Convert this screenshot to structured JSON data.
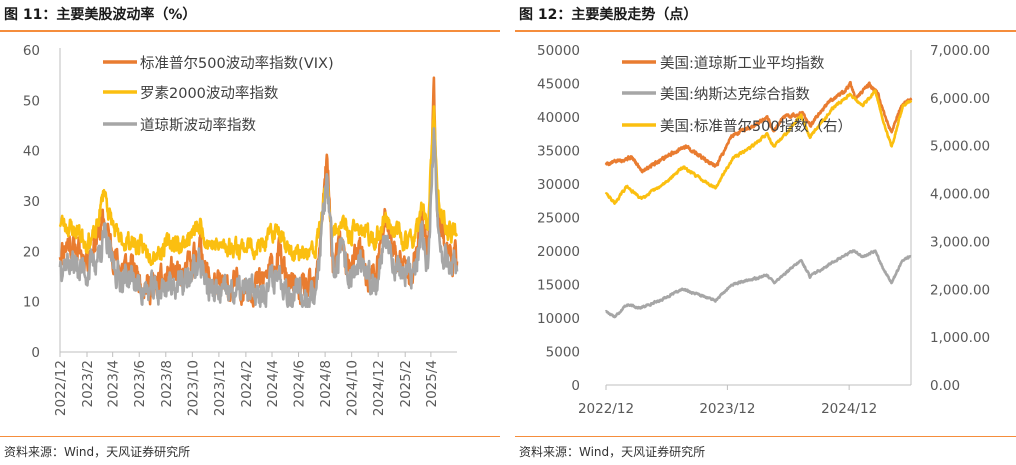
{
  "panels": {
    "left": {
      "title": "图 11：主要美股波动率（%）",
      "source": "资料来源：Wind，天风证券研究所"
    },
    "right": {
      "title": "图 12：主要美股走势（点）",
      "source": "资料来源：Wind，天风证券研究所"
    }
  },
  "chart_data": [
    {
      "type": "line",
      "title": "图 11：主要美股波动率（%）",
      "xlabel": "",
      "ylabel": "",
      "ylim": [
        0,
        60
      ],
      "y_ticks": [
        0,
        10,
        20,
        30,
        40,
        50,
        60
      ],
      "x_ticks": [
        "2022/12",
        "2023/2",
        "2023/4",
        "2023/6",
        "2023/8",
        "2023/10",
        "2023/12",
        "2024/2",
        "2024/4",
        "2024/6",
        "2024/8",
        "2024/10",
        "2024/12",
        "2025/2",
        "2025/4"
      ],
      "legend_position": "top-left",
      "x_range": [
        "2022-12-01",
        "2025-05-31"
      ],
      "series": [
        {
          "name": "标准普尔500波动率指数(VIX)",
          "color": "#e97c30",
          "points": [
            [
              "2022-12-01",
              20
            ],
            [
              "2022-12-20",
              22
            ],
            [
              "2023-01-10",
              20
            ],
            [
              "2023-02-01",
              19
            ],
            [
              "2023-02-20",
              22
            ],
            [
              "2023-03-13",
              26
            ],
            [
              "2023-03-25",
              22
            ],
            [
              "2023-04-15",
              17
            ],
            [
              "2023-05-10",
              17
            ],
            [
              "2023-06-01",
              15
            ],
            [
              "2023-06-20",
              13
            ],
            [
              "2023-07-15",
              13
            ],
            [
              "2023-08-15",
              16
            ],
            [
              "2023-09-05",
              14
            ],
            [
              "2023-09-25",
              17
            ],
            [
              "2023-10-20",
              21
            ],
            [
              "2023-11-05",
              15
            ],
            [
              "2023-11-25",
              13
            ],
            [
              "2023-12-15",
              12.5
            ],
            [
              "2024-01-10",
              13
            ],
            [
              "2024-02-10",
              13
            ],
            [
              "2024-03-10",
              14
            ],
            [
              "2024-04-19",
              19
            ],
            [
              "2024-05-10",
              13
            ],
            [
              "2024-06-10",
              12
            ],
            [
              "2024-07-10",
              12.5
            ],
            [
              "2024-08-05",
              38
            ],
            [
              "2024-08-20",
              16
            ],
            [
              "2024-09-06",
              22
            ],
            [
              "2024-09-25",
              16
            ],
            [
              "2024-10-20",
              20
            ],
            [
              "2024-11-06",
              15
            ],
            [
              "2024-11-25",
              15
            ],
            [
              "2024-12-18",
              27
            ],
            [
              "2025-01-10",
              19
            ],
            [
              "2025-02-05",
              16
            ],
            [
              "2025-02-25",
              18
            ],
            [
              "2025-03-10",
              27
            ],
            [
              "2025-03-25",
              19
            ],
            [
              "2025-04-08",
              52
            ],
            [
              "2025-04-15",
              31
            ],
            [
              "2025-04-25",
              25
            ],
            [
              "2025-05-10",
              20
            ],
            [
              "2025-05-31",
              18
            ]
          ]
        },
        {
          "name": "罗素2000波动率指数",
          "color": "#fbbf10",
          "points": [
            [
              "2022-12-01",
              26
            ],
            [
              "2022-12-20",
              25
            ],
            [
              "2023-01-10",
              24
            ],
            [
              "2023-02-01",
              22
            ],
            [
              "2023-02-20",
              23
            ],
            [
              "2023-03-13",
              32.5
            ],
            [
              "2023-03-25",
              27
            ],
            [
              "2023-04-15",
              22
            ],
            [
              "2023-05-10",
              22
            ],
            [
              "2023-06-01",
              21
            ],
            [
              "2023-06-20",
              20
            ],
            [
              "2023-07-15",
              20
            ],
            [
              "2023-08-15",
              22
            ],
            [
              "2023-09-05",
              21
            ],
            [
              "2023-09-25",
              23
            ],
            [
              "2023-10-20",
              25
            ],
            [
              "2023-11-05",
              22
            ],
            [
              "2023-11-25",
              21
            ],
            [
              "2023-12-15",
              21
            ],
            [
              "2024-01-10",
              21
            ],
            [
              "2024-02-10",
              21
            ],
            [
              "2024-03-10",
              21
            ],
            [
              "2024-04-19",
              25
            ],
            [
              "2024-05-10",
              20
            ],
            [
              "2024-06-10",
              19
            ],
            [
              "2024-07-10",
              20
            ],
            [
              "2024-08-05",
              33
            ],
            [
              "2024-08-20",
              23
            ],
            [
              "2024-09-06",
              26
            ],
            [
              "2024-09-25",
              23
            ],
            [
              "2024-10-20",
              25
            ],
            [
              "2024-11-06",
              23
            ],
            [
              "2024-11-25",
              22
            ],
            [
              "2024-12-18",
              27
            ],
            [
              "2025-01-10",
              24
            ],
            [
              "2025-02-05",
              22
            ],
            [
              "2025-02-25",
              23
            ],
            [
              "2025-03-10",
              28
            ],
            [
              "2025-03-25",
              25
            ],
            [
              "2025-04-08",
              48
            ],
            [
              "2025-04-15",
              32
            ],
            [
              "2025-04-25",
              27
            ],
            [
              "2025-05-10",
              24
            ],
            [
              "2025-05-31",
              23
            ]
          ]
        },
        {
          "name": "道琼斯波动率指数",
          "color": "#a6a6a6",
          "points": [
            [
              "2022-12-01",
              18
            ],
            [
              "2022-12-20",
              18
            ],
            [
              "2023-01-10",
              17
            ],
            [
              "2023-02-01",
              16
            ],
            [
              "2023-02-20",
              18
            ],
            [
              "2023-03-13",
              23
            ],
            [
              "2023-03-25",
              19
            ],
            [
              "2023-04-15",
              15
            ],
            [
              "2023-05-10",
              15
            ],
            [
              "2023-06-01",
              13
            ],
            [
              "2023-06-20",
              12
            ],
            [
              "2023-07-15",
              12
            ],
            [
              "2023-08-15",
              14
            ],
            [
              "2023-09-05",
              13
            ],
            [
              "2023-09-25",
              15
            ],
            [
              "2023-10-20",
              18
            ],
            [
              "2023-11-05",
              13
            ],
            [
              "2023-11-25",
              11.5
            ],
            [
              "2023-12-15",
              11.5
            ],
            [
              "2024-01-10",
              12
            ],
            [
              "2024-02-10",
              12
            ],
            [
              "2024-03-10",
              12
            ],
            [
              "2024-04-19",
              16
            ],
            [
              "2024-05-10",
              12
            ],
            [
              "2024-06-10",
              11
            ],
            [
              "2024-07-10",
              12
            ],
            [
              "2024-08-05",
              34
            ],
            [
              "2024-08-20",
              15
            ],
            [
              "2024-09-06",
              20
            ],
            [
              "2024-09-25",
              15
            ],
            [
              "2024-10-20",
              17
            ],
            [
              "2024-11-06",
              14
            ],
            [
              "2024-11-25",
              14
            ],
            [
              "2024-12-18",
              23
            ],
            [
              "2025-01-10",
              17
            ],
            [
              "2025-02-05",
              15
            ],
            [
              "2025-02-25",
              16
            ],
            [
              "2025-03-10",
              23
            ],
            [
              "2025-03-25",
              18
            ],
            [
              "2025-04-08",
              42
            ],
            [
              "2025-04-15",
              28
            ],
            [
              "2025-04-25",
              21
            ],
            [
              "2025-05-10",
              18
            ],
            [
              "2025-05-31",
              16
            ]
          ]
        }
      ]
    },
    {
      "type": "line",
      "title": "图 12：主要美股走势（点）",
      "xlabel": "",
      "ylabel": "",
      "ylim": [
        0,
        50000
      ],
      "y_ticks": [
        0,
        5000,
        10000,
        15000,
        20000,
        25000,
        30000,
        35000,
        40000,
        45000,
        50000
      ],
      "y2lim": [
        0,
        7000
      ],
      "y2_ticks": [
        "0.00",
        "1,000.00",
        "2,000.00",
        "3,000.00",
        "4,000.00",
        "5,000.00",
        "6,000.00",
        "7,000.00"
      ],
      "x_ticks": [
        "2022/12",
        "2023/12",
        "2024/12"
      ],
      "legend_position": "top-left",
      "x_range": [
        "2022-12-01",
        "2025-06-05"
      ],
      "series": [
        {
          "name": "美国:道琼斯工业平均指数",
          "color": "#e97c30",
          "axis": "left",
          "points": [
            [
              "2022-12-01",
              33000
            ],
            [
              "2023-02-15",
              34000
            ],
            [
              "2023-03-20",
              32000
            ],
            [
              "2023-05-10",
              33500
            ],
            [
              "2023-06-15",
              34500
            ],
            [
              "2023-08-01",
              35600
            ],
            [
              "2023-10-27",
              32500
            ],
            [
              "2023-12-15",
              37300
            ],
            [
              "2024-02-15",
              38600
            ],
            [
              "2024-03-30",
              39800
            ],
            [
              "2024-04-19",
              37800
            ],
            [
              "2024-05-17",
              40000
            ],
            [
              "2024-07-15",
              40500
            ],
            [
              "2024-08-05",
              38700
            ],
            [
              "2024-09-30",
              42300
            ],
            [
              "2024-11-15",
              43800
            ],
            [
              "2024-12-05",
              45000
            ],
            [
              "2024-12-20",
              42800
            ],
            [
              "2025-01-30",
              44900
            ],
            [
              "2025-02-25",
              43500
            ],
            [
              "2025-03-13",
              40800
            ],
            [
              "2025-04-08",
              37600
            ],
            [
              "2025-05-01",
              41000
            ],
            [
              "2025-05-20",
              42300
            ],
            [
              "2025-06-05",
              42500
            ]
          ]
        },
        {
          "name": "美国:纳斯达克综合指数",
          "color": "#a6a6a6",
          "axis": "left",
          "points": [
            [
              "2022-12-01",
              11000
            ],
            [
              "2022-12-28",
              10200
            ],
            [
              "2023-02-01",
              12000
            ],
            [
              "2023-03-15",
              11500
            ],
            [
              "2023-05-15",
              12700
            ],
            [
              "2023-07-20",
              14300
            ],
            [
              "2023-10-27",
              12600
            ],
            [
              "2023-12-15",
              15000
            ],
            [
              "2024-02-15",
              15800
            ],
            [
              "2024-03-30",
              16400
            ],
            [
              "2024-04-19",
              15300
            ],
            [
              "2024-07-10",
              18600
            ],
            [
              "2024-08-05",
              16200
            ],
            [
              "2024-10-15",
              18400
            ],
            [
              "2024-12-16",
              20100
            ],
            [
              "2025-01-10",
              19100
            ],
            [
              "2025-02-18",
              20000
            ],
            [
              "2025-03-13",
              17400
            ],
            [
              "2025-04-08",
              15300
            ],
            [
              "2025-05-12",
              18700
            ],
            [
              "2025-06-05",
              19200
            ]
          ]
        },
        {
          "name": "美国:标准普尔500指数（右）",
          "color": "#fbbf10",
          "axis": "right",
          "points": [
            [
              "2022-12-01",
              4000
            ],
            [
              "2022-12-28",
              3800
            ],
            [
              "2023-02-01",
              4150
            ],
            [
              "2023-03-15",
              3900
            ],
            [
              "2023-05-15",
              4150
            ],
            [
              "2023-07-20",
              4550
            ],
            [
              "2023-10-27",
              4120
            ],
            [
              "2023-12-15",
              4720
            ],
            [
              "2024-02-15",
              5000
            ],
            [
              "2024-03-30",
              5250
            ],
            [
              "2024-04-19",
              4970
            ],
            [
              "2024-07-10",
              5630
            ],
            [
              "2024-08-05",
              5190
            ],
            [
              "2024-10-15",
              5800
            ],
            [
              "2024-12-05",
              6080
            ],
            [
              "2025-01-10",
              5830
            ],
            [
              "2025-02-18",
              6140
            ],
            [
              "2025-03-13",
              5520
            ],
            [
              "2025-04-08",
              4980
            ],
            [
              "2025-05-12",
              5840
            ],
            [
              "2025-06-05",
              5950
            ]
          ]
        }
      ]
    }
  ]
}
